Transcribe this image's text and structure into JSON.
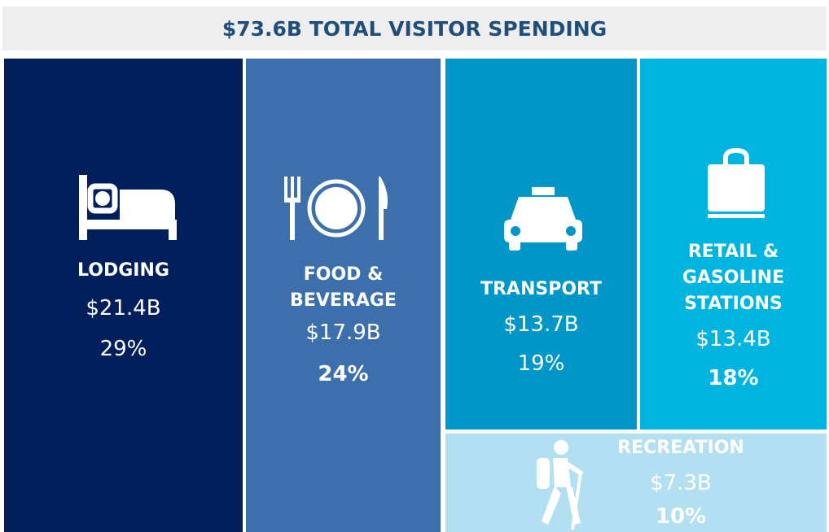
{
  "title": "$73.6B TOTAL VISITOR SPENDING",
  "tiles": [
    {
      "label": "LODGING",
      "amount": "$21.4B",
      "percent": "29%"
    },
    {
      "label": "FOOD & BEVERAGE",
      "amount": "$17.9B",
      "percent": "24%"
    },
    {
      "label": "TRANSPORT",
      "amount": "$13.7B",
      "percent": "19%"
    },
    {
      "label": "RETAIL & GASOLINE STATIONS",
      "amount": "$13.4B",
      "percent": "18%"
    },
    {
      "label": "RECREATION",
      "amount": "$7.3B",
      "percent": "10%"
    }
  ]
}
